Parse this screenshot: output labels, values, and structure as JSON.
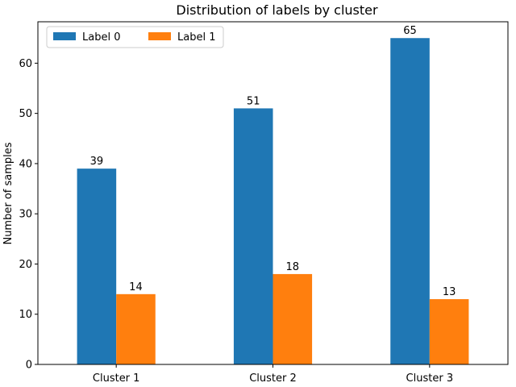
{
  "chart_data": {
    "type": "bar",
    "title": "Distribution of labels by cluster",
    "xlabel": "",
    "ylabel": "Number of samples",
    "categories": [
      "Cluster 1",
      "Cluster 2",
      "Cluster 3"
    ],
    "series": [
      {
        "name": "Label 0",
        "values": [
          39,
          51,
          65
        ],
        "color": "#1f77b4"
      },
      {
        "name": "Label 1",
        "values": [
          14,
          18,
          13
        ],
        "color": "#ff7f0e"
      }
    ],
    "ylim": [
      0,
      68.25
    ],
    "yticks": [
      0,
      10,
      20,
      30,
      40,
      50,
      60
    ],
    "grid": false,
    "legend_position": "top-left",
    "data_labels": true
  }
}
